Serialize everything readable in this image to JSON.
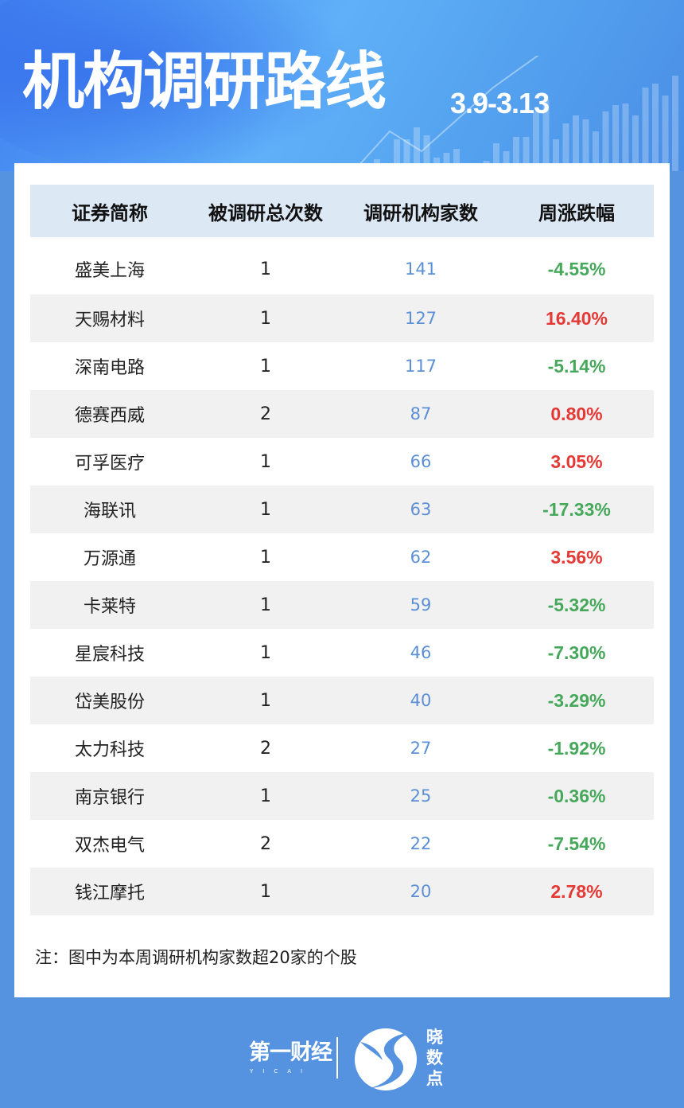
{
  "header": {
    "title": "机构调研路线",
    "date_range": "3.9-3.13"
  },
  "table": {
    "columns": [
      "证券简称",
      "被调研总次数",
      "调研机构家数",
      "周涨跌幅"
    ],
    "rows": [
      {
        "name": "盛美上海",
        "times": "1",
        "institutions": "141",
        "change": "-4.55%"
      },
      {
        "name": "天赐材料",
        "times": "1",
        "institutions": "127",
        "change": "16.40%"
      },
      {
        "name": "深南电路",
        "times": "1",
        "institutions": "117",
        "change": "-5.14%"
      },
      {
        "name": "德赛西威",
        "times": "2",
        "institutions": "87",
        "change": "0.80%"
      },
      {
        "name": "可孚医疗",
        "times": "1",
        "institutions": "66",
        "change": "3.05%"
      },
      {
        "name": "海联讯",
        "times": "1",
        "institutions": "63",
        "change": "-17.33%"
      },
      {
        "name": "万源通",
        "times": "1",
        "institutions": "62",
        "change": "3.56%"
      },
      {
        "name": "卡莱特",
        "times": "1",
        "institutions": "59",
        "change": "-5.32%"
      },
      {
        "name": "星宸科技",
        "times": "1",
        "institutions": "46",
        "change": "-7.30%"
      },
      {
        "name": "岱美股份",
        "times": "1",
        "institutions": "40",
        "change": "-3.29%"
      },
      {
        "name": "太力科技",
        "times": "2",
        "institutions": "27",
        "change": "-1.92%"
      },
      {
        "name": "南京银行",
        "times": "1",
        "institutions": "25",
        "change": "-0.36%"
      },
      {
        "name": "双杰电气",
        "times": "2",
        "institutions": "22",
        "change": "-7.54%"
      },
      {
        "name": "钱江摩托",
        "times": "1",
        "institutions": "20",
        "change": "2.78%"
      }
    ]
  },
  "note": "注：图中为本周调研机构家数超20家的个股",
  "footer": {
    "brand1": "第一财经",
    "brand1_sub": "YICAI",
    "brand2": "晓数点"
  },
  "colors": {
    "background": "#5592e0",
    "up": "#e53935",
    "down": "#46a85a",
    "count": "#5b8fd6",
    "header_row": "#dde8f5"
  }
}
